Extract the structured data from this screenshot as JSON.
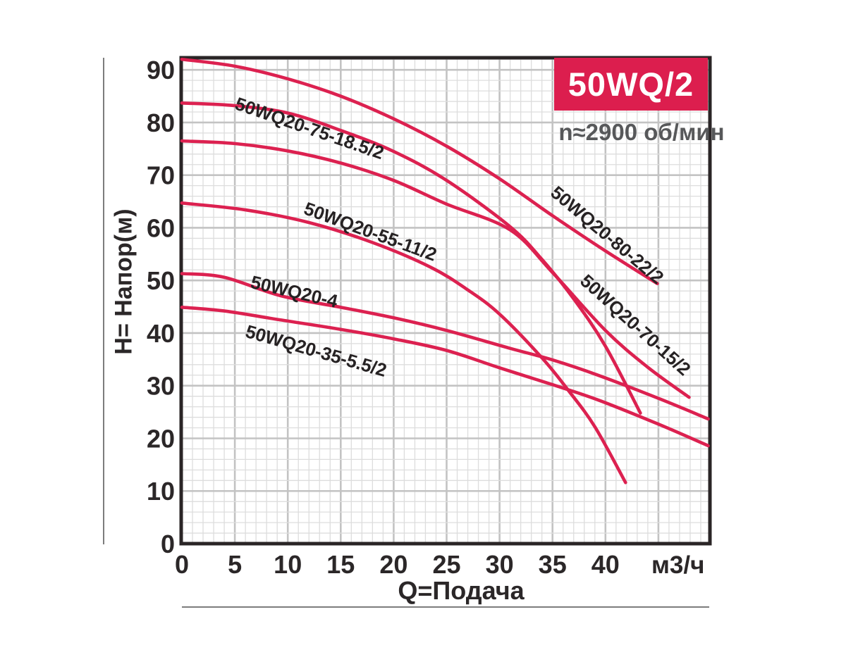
{
  "chart_data": {
    "type": "line",
    "title_badge": "50WQ/2",
    "subtitle": "n≈2900 об/мин",
    "xlabel": "Q=Подача",
    "x_unit": "м3/ч",
    "ylabel": "H= Напор(м)",
    "xlim": [
      0,
      49.8
    ],
    "ylim": [
      0,
      92.3
    ],
    "x_ticks": [
      0,
      5,
      10,
      15,
      20,
      25,
      30,
      35,
      40
    ],
    "y_ticks": [
      0,
      10,
      20,
      30,
      40,
      50,
      60,
      70,
      80,
      90
    ],
    "x_minor_step": 1,
    "y_minor_step": 2,
    "grid": true,
    "legend_position": "labels-on-curves",
    "series": [
      {
        "name": "50WQ20-80-22/2",
        "label": {
          "q": 34.7,
          "h": 66.3,
          "angle": 40
        },
        "points": [
          [
            0,
            92.0
          ],
          [
            5,
            90.7
          ],
          [
            10,
            88.3
          ],
          [
            15,
            85.0
          ],
          [
            20,
            80.7
          ],
          [
            25,
            75.5
          ],
          [
            30,
            69.3
          ],
          [
            35,
            62.3
          ],
          [
            40,
            55.6
          ],
          [
            44.9,
            49.4
          ]
        ]
      },
      {
        "name": "50WQ20-75-18.5/2",
        "label": {
          "q": 4.9,
          "h": 82.6,
          "angle": 19
        },
        "points": [
          [
            0,
            83.7
          ],
          [
            5,
            83.2
          ],
          [
            10,
            81.8
          ],
          [
            15,
            78.5
          ],
          [
            20,
            74.5
          ],
          [
            25,
            69.0
          ],
          [
            31,
            60.2
          ],
          [
            34,
            54.0
          ],
          [
            37,
            46.5
          ],
          [
            40,
            37.5
          ],
          [
            43.3,
            24.8
          ]
        ]
      },
      {
        "name": "50WQ20-70-15/2",
        "label": {
          "q": 37.5,
          "h": 49.6,
          "angle": 42
        },
        "points": [
          [
            0,
            76.5
          ],
          [
            5,
            76.0
          ],
          [
            10,
            74.6
          ],
          [
            15,
            72.3
          ],
          [
            20,
            69.0
          ],
          [
            25,
            64.5
          ],
          [
            31,
            59.6
          ],
          [
            35,
            51.5
          ],
          [
            40,
            40.5
          ],
          [
            44,
            33.5
          ],
          [
            47.9,
            27.8
          ]
        ]
      },
      {
        "name": "50WQ20-55-11/2",
        "label": {
          "q": 11.4,
          "h": 62.7,
          "angle": 20
        },
        "points": [
          [
            0,
            64.7
          ],
          [
            6,
            63.4
          ],
          [
            12,
            61.0
          ],
          [
            18,
            57.2
          ],
          [
            23.5,
            52.5
          ],
          [
            27,
            48.2
          ],
          [
            30,
            43.6
          ],
          [
            34,
            35.3
          ],
          [
            36.5,
            29.1
          ],
          [
            39,
            22.2
          ],
          [
            41.9,
            11.6
          ]
        ]
      },
      {
        "name": "50WQ20-4",
        "label": {
          "q": 6.4,
          "h": 48.6,
          "angle": 13
        },
        "points": [
          [
            0,
            51.3
          ],
          [
            4,
            50.6
          ],
          [
            9.3,
            47.1
          ],
          [
            15,
            44.9
          ],
          [
            20,
            42.9
          ],
          [
            25,
            40.5
          ],
          [
            31,
            37.1
          ],
          [
            35,
            34.9
          ],
          [
            39.3,
            32.0
          ],
          [
            45,
            27.6
          ],
          [
            49.7,
            23.7
          ]
        ]
      },
      {
        "name": "50WQ20-35-5.5/2",
        "label": {
          "q": 5.9,
          "h": 39.3,
          "angle": 16
        },
        "points": [
          [
            0,
            44.9
          ],
          [
            4,
            44.2
          ],
          [
            9.3,
            42.5
          ],
          [
            15,
            40.7
          ],
          [
            20,
            38.9
          ],
          [
            25,
            36.7
          ],
          [
            30,
            33.4
          ],
          [
            35,
            30.2
          ],
          [
            39.3,
            27.3
          ],
          [
            45,
            22.7
          ],
          [
            49.7,
            18.6
          ]
        ]
      }
    ],
    "colors": {
      "curve": "#dc2150",
      "badge_bg": "#dc1e4e",
      "badge_text": "#ffffff",
      "subtitle_text": "#57585a",
      "axis_text": "#2b2728",
      "curve_label_text": "#262223",
      "grid_minor": "#dddddd",
      "grid_major": "#c3c3c3",
      "plot_border": "#2a2526"
    }
  }
}
